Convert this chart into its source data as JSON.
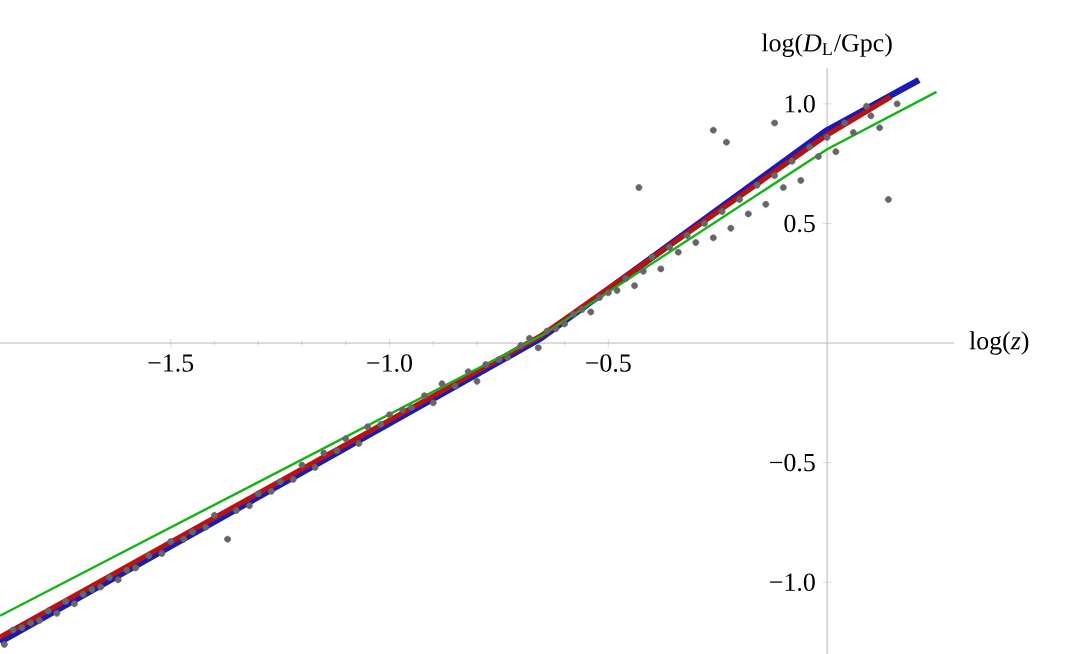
{
  "chart_data": {
    "type": "scatter",
    "xlabel": "log(*z*)",
    "ylabel": "log(*D*$_{L}$/Gpc)",
    "xlim": [
      -1.89,
      0.29
    ],
    "ylim": [
      -1.3,
      1.15
    ],
    "xticks": [
      {
        "value": -1.5,
        "label": "−1.5"
      },
      {
        "value": -1.0,
        "label": "−1.0"
      },
      {
        "value": -0.5,
        "label": "−0.5"
      }
    ],
    "yticks": [
      {
        "value": -1.0,
        "label": "−1.0"
      },
      {
        "value": -0.5,
        "label": "−0.5"
      },
      0.5,
      {
        "value": 1.0,
        "label": "1.0"
      }
    ],
    "series": [
      {
        "color": "#666666",
        "x": [
          -1.88,
          -1.86,
          -1.84,
          -1.82,
          -1.8,
          -1.78,
          -1.76,
          -1.74,
          -1.72,
          -1.7,
          -1.68,
          -1.66,
          -1.64,
          -1.62,
          -1.6,
          -1.58,
          -1.55,
          -1.52,
          -1.5,
          -1.47,
          -1.45,
          -1.42,
          -1.4,
          -1.37,
          -1.35,
          -1.32,
          -1.3,
          -1.27,
          -1.25,
          -1.22,
          -1.2,
          -1.17,
          -1.15,
          -1.12,
          -1.1,
          -1.07,
          -1.05,
          -1.02,
          -1.0,
          -0.97,
          -0.95,
          -0.92,
          -0.9,
          -0.88,
          -0.85,
          -0.82,
          -0.8,
          -0.78,
          -0.75,
          -0.73,
          -0.7,
          -0.68,
          -0.66,
          -0.64,
          -0.62,
          -0.6,
          -0.58,
          -0.56,
          -0.54,
          -0.52,
          -0.5,
          -0.48,
          -0.46,
          -0.44,
          -0.43,
          -0.42,
          -0.4,
          -0.38,
          -0.36,
          -0.34,
          -0.32,
          -0.3,
          -0.28,
          -0.26,
          -0.26,
          -0.24,
          -0.23,
          -0.22,
          -0.2,
          -0.18,
          -0.16,
          -0.14,
          -0.12,
          -0.12,
          -0.1,
          -0.08,
          -0.06,
          -0.04,
          -0.02,
          0.0,
          0.02,
          0.04,
          0.06,
          0.09,
          0.1,
          0.12,
          0.14,
          0.16
        ],
        "values": [
          -1.26,
          -1.2,
          -1.19,
          -1.17,
          -1.16,
          -1.12,
          -1.13,
          -1.08,
          -1.09,
          -1.05,
          -1.03,
          -1.02,
          -0.98,
          -0.99,
          -0.95,
          -0.94,
          -0.89,
          -0.88,
          -0.83,
          -0.82,
          -0.79,
          -0.77,
          -0.72,
          -0.82,
          -0.7,
          -0.68,
          -0.63,
          -0.62,
          -0.58,
          -0.57,
          -0.51,
          -0.52,
          -0.46,
          -0.45,
          -0.4,
          -0.42,
          -0.35,
          -0.34,
          -0.3,
          -0.28,
          -0.27,
          -0.22,
          -0.25,
          -0.17,
          -0.18,
          -0.12,
          -0.16,
          -0.09,
          -0.07,
          -0.06,
          -0.01,
          0.02,
          -0.02,
          0.05,
          0.06,
          0.08,
          0.12,
          0.14,
          0.13,
          0.19,
          0.21,
          0.22,
          0.27,
          0.24,
          0.65,
          0.3,
          0.36,
          0.31,
          0.4,
          0.38,
          0.45,
          0.42,
          0.5,
          0.89,
          0.44,
          0.55,
          0.84,
          0.48,
          0.6,
          0.54,
          0.66,
          0.58,
          0.92,
          0.7,
          0.65,
          0.76,
          0.68,
          0.82,
          0.78,
          0.86,
          0.8,
          0.92,
          0.88,
          0.99,
          0.95,
          0.9,
          0.6,
          1.0
        ]
      },
      {
        "type": "line",
        "color": "#1a1ab4",
        "x": [
          -1.89,
          -0.654,
          0,
          0.21
        ],
        "values": [
          -1.25,
          0.02,
          0.89,
          1.1
        ]
      },
      {
        "type": "line",
        "color": "#b41414",
        "x": [
          -1.89,
          -0.654,
          0,
          0.146
        ],
        "values": [
          -1.23,
          0.03,
          0.87,
          1.03
        ]
      },
      {
        "type": "line",
        "color": "#14b414",
        "x": [
          -1.89,
          -0.654,
          0,
          0.25
        ],
        "values": [
          -1.14,
          0.03,
          0.81,
          1.05
        ]
      }
    ]
  }
}
